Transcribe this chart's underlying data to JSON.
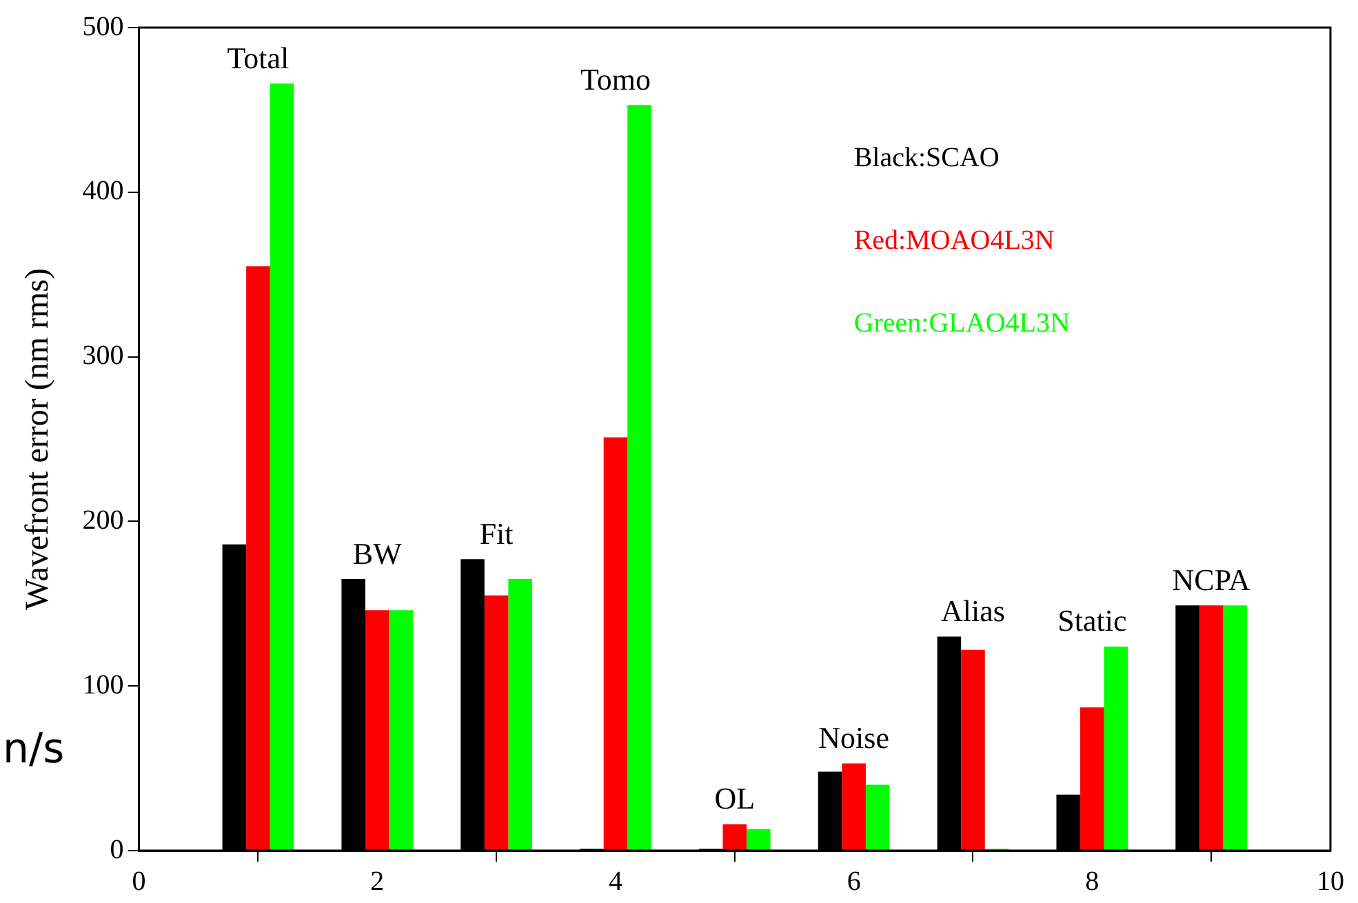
{
  "chart_data": {
    "type": "bar",
    "ylabel": "Wavefront error (nm rms)",
    "x": [
      1,
      2,
      3,
      4,
      5,
      6,
      7,
      8,
      9
    ],
    "xlim": [
      0,
      10
    ],
    "xticks": [
      0,
      2,
      4,
      6,
      8,
      10
    ],
    "ylim": [
      0,
      500
    ],
    "yticks": [
      0,
      100,
      200,
      300,
      400,
      500
    ],
    "grid": false,
    "legend": "top right",
    "series": [
      {
        "name": "Black:SCAO",
        "color": "#000000",
        "values": [
          186,
          165,
          177,
          1,
          1,
          48,
          130,
          34,
          149
        ]
      },
      {
        "name": "Red:MOAO4L3N",
        "color": "#ff0000",
        "values": [
          355,
          146,
          155,
          251,
          16,
          53,
          122,
          87,
          149
        ]
      },
      {
        "name": "Green:GLAO4L3N",
        "color": "#00ff00",
        "values": [
          466,
          146,
          165,
          453,
          13,
          40,
          1,
          124,
          149
        ]
      }
    ],
    "annotations": [
      "Total",
      "BW",
      "Fit",
      "Tomo",
      "OL",
      "Noise",
      "Alias",
      "Static",
      "NCPA",
      "n/s"
    ]
  }
}
